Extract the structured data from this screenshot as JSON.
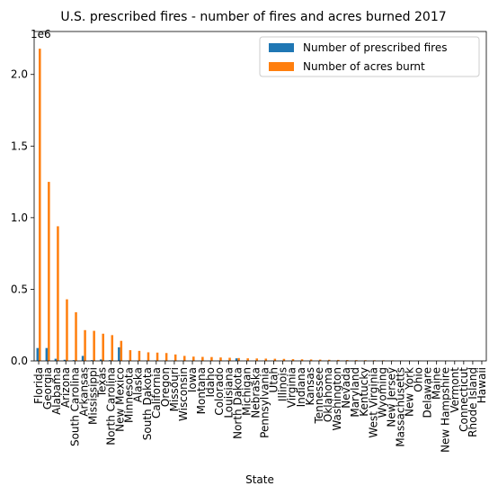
{
  "chart_data": {
    "type": "bar",
    "title": "U.S. prescribed fires - number of fires and acres burned 2017",
    "xlabel": "State",
    "ylabel": "",
    "y_offset_label": "1e6",
    "ylim": [
      0,
      2300000
    ],
    "yticks": [
      0,
      500000,
      1000000,
      1500000,
      2000000
    ],
    "ytick_labels": [
      "0.0",
      "0.5",
      "1.0",
      "1.5",
      "2.0"
    ],
    "grid": false,
    "legend_position": "top-right",
    "categories": [
      "Florida",
      "Georgia",
      "Alabama",
      "Arizona",
      "South Carolina",
      "Arkansas",
      "Mississippi",
      "Texas",
      "North Carolina",
      "New Mexico",
      "Minnesota",
      "Alaska",
      "South Dakota",
      "California",
      "Oregon",
      "Missouri",
      "Wisconsin",
      "Iowa",
      "Montana",
      "Idaho",
      "Colorado",
      "Louisiana",
      "North Dakota",
      "Michigan",
      "Nebraska",
      "Pennsylvania",
      "Utah",
      "Illinois",
      "Virginia",
      "Indiana",
      "Kansas",
      "Tennessee",
      "Oklahoma",
      "Washington",
      "Nevada",
      "Maryland",
      "Kentucky",
      "West Virginia",
      "Wyoming",
      "New Jersey",
      "Massachusetts",
      "New York",
      "Ohio",
      "Delaware",
      "Maine",
      "New Hampshire",
      "Vermont",
      "Connecticut",
      "Rhode Island",
      "Hawaii"
    ],
    "series": [
      {
        "name": "Number of prescribed fires",
        "color": "#1f77b4",
        "values": [
          90000,
          90000,
          15000,
          8000,
          5000,
          35000,
          5000,
          10000,
          5000,
          95000,
          3000,
          1000,
          2000,
          3000,
          2000,
          2000,
          2000,
          1000,
          1000,
          1000,
          1000,
          3000,
          18000,
          1000,
          1000,
          1000,
          1000,
          1000,
          1000,
          1000,
          1000,
          500,
          500,
          500,
          500,
          500,
          500,
          500,
          500,
          500,
          500,
          300,
          300,
          300,
          300,
          200,
          200,
          200,
          100,
          100
        ]
      },
      {
        "name": "Number of acres burnt",
        "color": "#ff7f0e",
        "values": [
          2180000,
          1250000,
          940000,
          430000,
          340000,
          215000,
          210000,
          190000,
          180000,
          140000,
          75000,
          70000,
          60000,
          58000,
          55000,
          45000,
          35000,
          30000,
          28000,
          27000,
          24000,
          22000,
          20000,
          18000,
          17000,
          16000,
          15000,
          14000,
          12000,
          11000,
          10000,
          9000,
          8000,
          7000,
          6000,
          5500,
          5000,
          4500,
          4000,
          3500,
          3000,
          2500,
          2000,
          1800,
          1500,
          1200,
          1000,
          800,
          600,
          400
        ]
      }
    ]
  }
}
